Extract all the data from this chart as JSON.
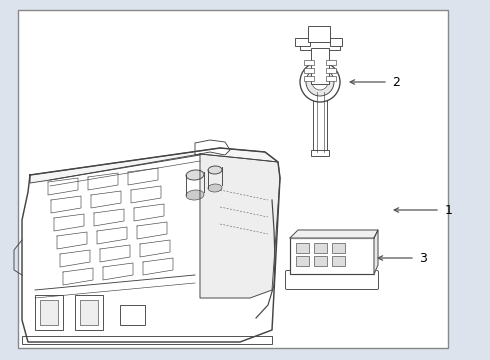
{
  "background_color": "#dce3ec",
  "border_color": "#555555",
  "line_color": "#444444",
  "label_color": "#000000",
  "part_labels": [
    "1",
    "2",
    "3"
  ]
}
